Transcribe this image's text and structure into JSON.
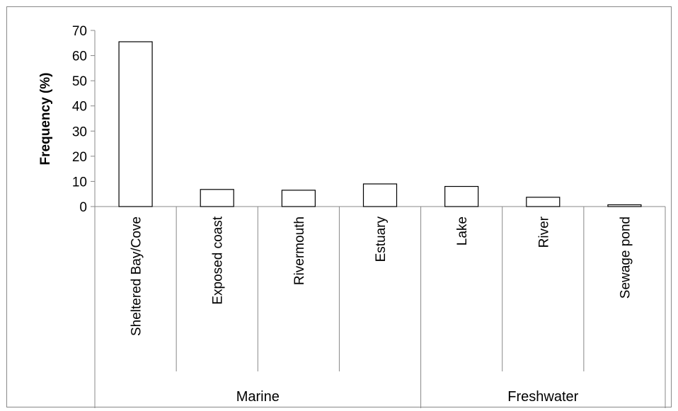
{
  "chart_data": {
    "type": "bar",
    "ylabel": "Frequency (%)",
    "xlabel": "",
    "ylim": [
      0,
      70
    ],
    "yticks": [
      0,
      10,
      20,
      30,
      40,
      50,
      60,
      70
    ],
    "grid": false,
    "legend": "none",
    "groups": [
      {
        "label": "Marine",
        "categories": [
          "Sheltered Bay/Cove",
          "Exposed coast",
          "Rivermouth",
          "Estuary"
        ]
      },
      {
        "label": "Freshwater",
        "categories": [
          "Lake",
          "River",
          "Sewage pond"
        ]
      }
    ],
    "categories": [
      "Sheltered Bay/Cove",
      "Exposed coast",
      "Rivermouth",
      "Estuary",
      "Lake",
      "River",
      "Sewage pond"
    ],
    "values": [
      65.5,
      6.8,
      6.5,
      9.0,
      8.0,
      3.7,
      0.7
    ],
    "bar_fill": "#ffffff",
    "bar_stroke": "#000000"
  }
}
